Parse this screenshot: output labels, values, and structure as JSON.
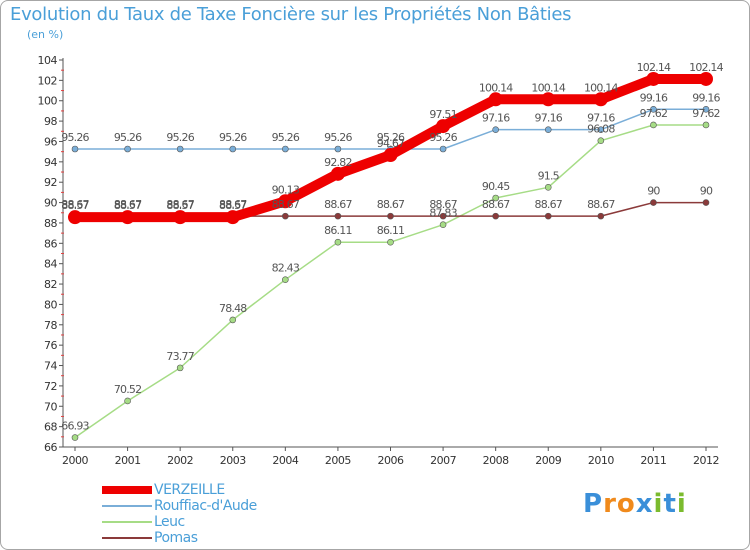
{
  "title": "Evolution du Taux de Taxe Foncière sur les Propriétés Non Bâties",
  "unit_label": "(en %)",
  "logo": {
    "letters": [
      "P",
      "r",
      "o",
      "x",
      "i",
      "t",
      "i"
    ],
    "colors": [
      "#3a8fd9",
      "#f08a1c",
      "#f08a1c",
      "#3a8fd9",
      "#7bbb2e",
      "#3a8fd9",
      "#7bbb2e"
    ]
  },
  "chart_data": {
    "type": "line",
    "title": "Evolution du Taux de Taxe Foncière sur les Propriétés Non Bâties",
    "xlabel": "",
    "ylabel": "(en %)",
    "ylim": [
      66,
      104
    ],
    "ytick_step": 2,
    "grid": false,
    "legend_position": "bottom-left",
    "categories": [
      "2000",
      "2001",
      "2002",
      "2003",
      "2004",
      "2005",
      "2006",
      "2007",
      "2008",
      "2009",
      "2010",
      "2011",
      "2012"
    ],
    "series": [
      {
        "name": "VERZEILLE",
        "color": "#ee0000",
        "values": [
          88.57,
          88.57,
          88.57,
          88.57,
          90.13,
          92.82,
          94.67,
          97.51,
          100.14,
          100.14,
          100.14,
          102.14,
          102.14
        ],
        "labels": [
          "88.57",
          "88.57",
          "88.57",
          "88.57",
          "90.13",
          "92.82",
          "94.67",
          "97.51",
          "100.14",
          "100.14",
          "100.14",
          "102.14",
          "102.14"
        ]
      },
      {
        "name": "Rouffiac-d'Aude",
        "color": "#7aaed8",
        "values": [
          95.26,
          95.26,
          95.26,
          95.26,
          95.26,
          95.26,
          95.26,
          95.26,
          97.16,
          97.16,
          97.16,
          99.16,
          99.16
        ],
        "labels": [
          "95.26",
          "95.26",
          "95.26",
          "95.26",
          "95.26",
          "95.26",
          "95.26",
          "95.26",
          "97.16",
          "97.16",
          "97.16",
          "99.16",
          "99.16"
        ]
      },
      {
        "name": "Leuc",
        "color": "#a6dc86",
        "values": [
          66.93,
          70.52,
          73.77,
          78.48,
          82.43,
          86.11,
          86.11,
          87.83,
          90.45,
          91.5,
          96.08,
          97.62,
          97.62
        ],
        "labels": [
          "66.93",
          "70.52",
          "73.77",
          "78.48",
          "82.43",
          "86.11",
          "86.11",
          "87.83",
          "90.45",
          "91.5",
          "96.08",
          "97.62",
          "97.62"
        ]
      },
      {
        "name": "Pomas",
        "color": "#8b3a3a",
        "values": [
          88.67,
          88.67,
          88.67,
          88.67,
          88.67,
          88.67,
          88.67,
          88.67,
          88.67,
          88.67,
          88.67,
          90,
          90
        ],
        "labels": [
          "88.67",
          "88.67",
          "88.67",
          "88.67",
          "88.67",
          "88.67",
          "88.67",
          "88.67",
          "88.67",
          "88.67",
          "88.67",
          "90",
          "90"
        ]
      }
    ]
  }
}
